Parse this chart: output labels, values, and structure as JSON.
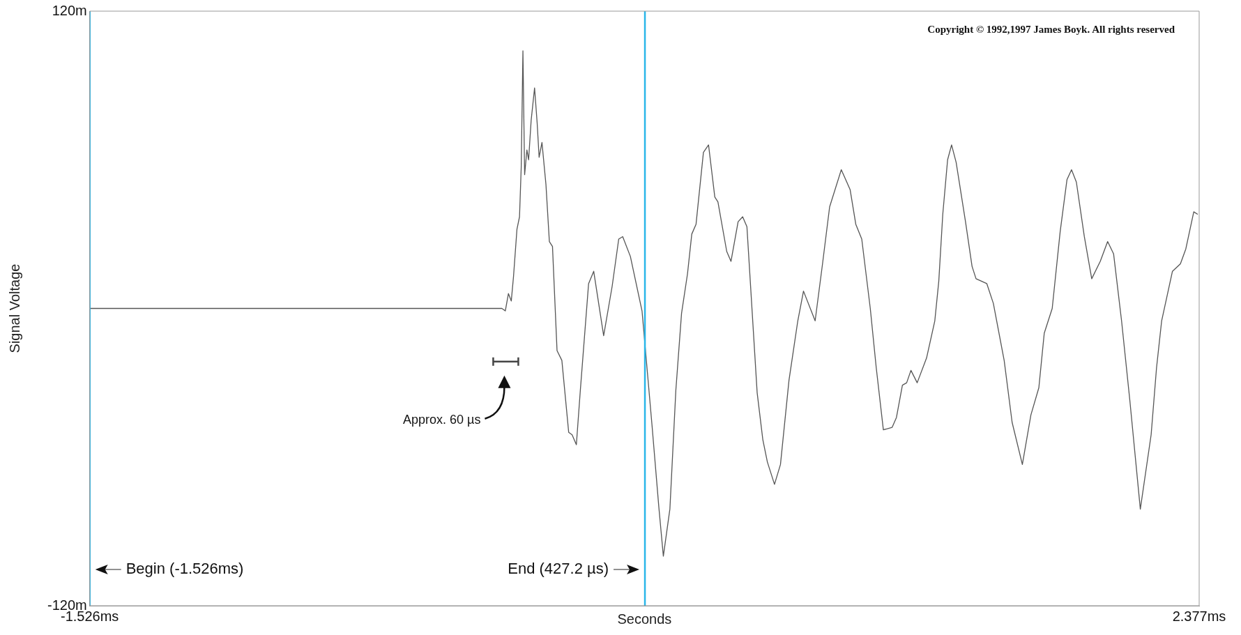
{
  "chart_data": {
    "type": "line",
    "xlabel": "Seconds",
    "ylabel": "Signal Voltage",
    "xlim": [
      -1.526,
      2.377
    ],
    "ylim": [
      -120,
      120
    ],
    "xticks": [
      {
        "value": -1.526,
        "label": "-1.526ms"
      },
      {
        "value": 2.377,
        "label": "2.377ms"
      }
    ],
    "yticks": [
      {
        "value": -120,
        "label": "-120m"
      },
      {
        "value": 120,
        "label": "120m"
      }
    ],
    "grid": false,
    "legend": false,
    "marker": "none",
    "line_style": "solid",
    "ref_lines": [
      {
        "axis": "x",
        "value": -1.526,
        "label": "Begin (-1.526ms)",
        "color": "#29b6e8"
      },
      {
        "axis": "x",
        "value": 0.4272,
        "label": "End (427.2 µs)",
        "color": "#29b6e8"
      }
    ],
    "annotations": [
      "Copyright © 1992,1997 James Boyk. All rights reserved",
      "Approx. 60 µs"
    ],
    "series": [
      {
        "color": "#555555",
        "x": [
          -1.526,
          -0.076,
          -0.064,
          -0.053,
          -0.043,
          -0.035,
          -0.023,
          -0.014,
          -0.008,
          -0.002,
          0.004,
          0.012,
          0.018,
          0.027,
          0.039,
          0.048,
          0.055,
          0.065,
          0.079,
          0.091,
          0.102,
          0.118,
          0.135,
          0.159,
          0.171,
          0.186,
          0.2,
          0.229,
          0.247,
          0.282,
          0.312,
          0.335,
          0.349,
          0.376,
          0.417,
          0.452,
          0.476,
          0.492,
          0.515,
          0.536,
          0.556,
          0.577,
          0.592,
          0.607,
          0.633,
          0.651,
          0.673,
          0.684,
          0.715,
          0.73,
          0.755,
          0.771,
          0.786,
          0.822,
          0.842,
          0.858,
          0.883,
          0.904,
          0.934,
          0.965,
          0.985,
          1.026,
          1.052,
          1.077,
          1.118,
          1.149,
          1.169,
          1.19,
          1.22,
          1.241,
          1.266,
          1.297,
          1.312,
          1.333,
          1.348,
          1.363,
          1.385,
          1.418,
          1.447,
          1.461,
          1.475,
          1.492,
          1.506,
          1.522,
          1.555,
          1.578,
          1.592,
          1.63,
          1.653,
          1.691,
          1.719,
          1.755,
          1.785,
          1.813,
          1.832,
          1.86,
          1.888,
          1.912,
          1.928,
          1.945,
          1.973,
          1.999,
          2.029,
          2.055,
          2.076,
          2.104,
          2.133,
          2.17,
          2.208,
          2.227,
          2.245,
          2.283,
          2.311,
          2.33,
          2.358,
          2.372
        ],
        "values": [
          0,
          0,
          -1,
          6,
          3,
          13,
          32,
          37,
          57,
          104,
          54,
          64,
          60,
          76,
          89,
          75,
          61,
          67,
          50,
          27,
          25,
          -17,
          -21,
          -50,
          -51,
          -55,
          -33,
          10,
          15,
          -11,
          9,
          28,
          29,
          21,
          -1,
          -47,
          -80,
          -100,
          -81,
          -33,
          -2,
          14,
          30,
          34,
          63,
          66,
          45,
          43,
          23,
          19,
          35,
          37,
          33,
          -34,
          -53,
          -62,
          -71,
          -63,
          -29,
          -5,
          7,
          -5,
          18,
          41,
          56,
          48,
          34,
          28,
          0,
          -24,
          -49,
          -48,
          -44,
          -31,
          -30,
          -25,
          -30,
          -20,
          -5,
          11,
          38,
          60,
          66,
          59,
          35,
          17,
          12,
          10,
          2,
          -21,
          -46,
          -63,
          -43,
          -32,
          -10,
          0,
          31,
          52,
          56,
          51,
          29,
          12,
          19,
          27,
          22,
          -5,
          -37,
          -81,
          -51,
          -24,
          -5,
          15,
          18,
          24,
          39,
          38
        ]
      }
    ]
  }
}
